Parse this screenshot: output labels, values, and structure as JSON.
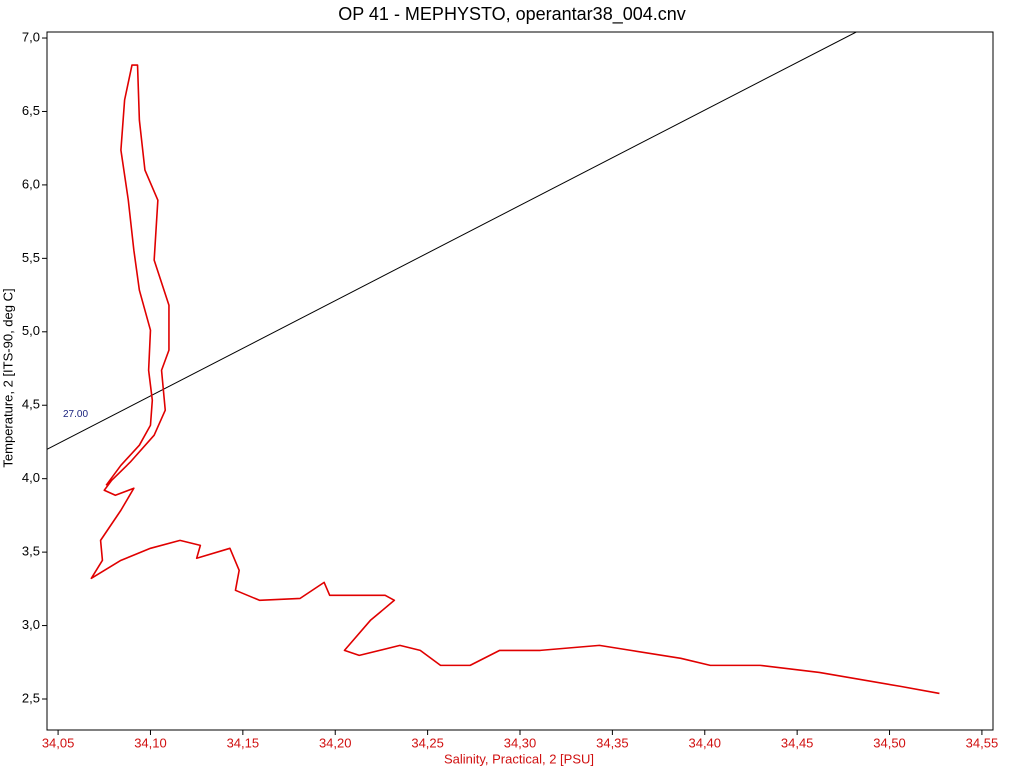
{
  "chart_data": {
    "type": "line",
    "title": "OP 41 - MEPHYSTO, operantar38_004.cnv",
    "x_label": "Salinity, Practical, 2 [PSU]",
    "y_label": "Temperature, 2 [ITS-90, deg C]",
    "xlim": [
      34.044,
      34.556
    ],
    "ylim": [
      2.289,
      7.041
    ],
    "xticks": [
      {
        "value": 34.05,
        "label": "34,05"
      },
      {
        "value": 34.1,
        "label": "34,10"
      },
      {
        "value": 34.15,
        "label": "34,15"
      },
      {
        "value": 34.2,
        "label": "34,20"
      },
      {
        "value": 34.25,
        "label": "34,25"
      },
      {
        "value": 34.3,
        "label": "34,30"
      },
      {
        "value": 34.35,
        "label": "34,35"
      },
      {
        "value": 34.4,
        "label": "34,40"
      },
      {
        "value": 34.45,
        "label": "34,45"
      },
      {
        "value": 34.5,
        "label": "34,50"
      },
      {
        "value": 34.55,
        "label": "34,55"
      }
    ],
    "yticks": [
      {
        "value": 2.5,
        "label": "2,5"
      },
      {
        "value": 3.0,
        "label": "3,0"
      },
      {
        "value": 3.5,
        "label": "3,5"
      },
      {
        "value": 4.0,
        "label": "4,0"
      },
      {
        "value": 4.5,
        "label": "4,5"
      },
      {
        "value": 5.0,
        "label": "5,0"
      },
      {
        "value": 5.5,
        "label": "5,5"
      },
      {
        "value": 6.0,
        "label": "6,0"
      },
      {
        "value": 6.5,
        "label": "6,5"
      },
      {
        "value": 7.0,
        "label": "7,0"
      }
    ],
    "grid": false,
    "series": [
      {
        "color": "#e00000",
        "x": [
          34.076,
          34.084,
          34.094,
          34.1,
          34.101,
          34.099,
          34.1,
          34.094,
          34.091,
          34.088,
          34.084,
          34.086,
          34.09,
          34.093,
          34.094,
          34.097,
          34.104,
          34.102,
          34.11,
          34.11,
          34.106,
          34.108,
          34.102,
          34.089,
          34.079,
          34.075,
          34.081,
          34.091,
          34.084,
          34.073,
          34.074,
          34.068,
          34.084,
          34.1,
          34.116,
          34.127,
          34.125,
          34.143,
          34.148,
          34.146,
          34.159,
          34.181,
          34.194,
          34.197,
          34.227,
          34.232,
          34.219,
          34.205,
          34.213,
          34.235,
          34.246,
          34.257,
          34.273,
          34.289,
          34.311,
          34.343,
          34.36,
          34.387,
          34.403,
          34.43,
          34.462,
          34.506,
          34.527
        ],
        "values": [
          3.955,
          4.091,
          4.228,
          4.364,
          4.534,
          4.738,
          5.011,
          5.283,
          5.556,
          5.896,
          6.237,
          6.578,
          6.816,
          6.816,
          6.441,
          6.101,
          5.896,
          5.488,
          5.181,
          4.875,
          4.738,
          4.466,
          4.296,
          4.112,
          3.989,
          3.921,
          3.887,
          3.935,
          3.785,
          3.58,
          3.444,
          3.322,
          3.444,
          3.526,
          3.58,
          3.546,
          3.458,
          3.526,
          3.376,
          3.24,
          3.172,
          3.185,
          3.294,
          3.206,
          3.206,
          3.172,
          3.035,
          2.831,
          2.797,
          2.865,
          2.831,
          2.729,
          2.729,
          2.831,
          2.831,
          2.865,
          2.831,
          2.777,
          2.729,
          2.729,
          2.681,
          2.586,
          2.538
        ]
      }
    ],
    "isopycnal": {
      "label": "27.00",
      "color": "#000000",
      "x": [
        34.044,
        34.482
      ],
      "values": [
        4.2,
        7.041
      ]
    }
  }
}
